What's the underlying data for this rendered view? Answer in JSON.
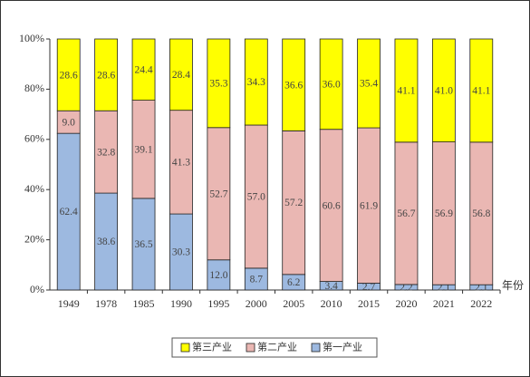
{
  "chart_data": {
    "type": "stacked_bar",
    "categories": [
      "1949",
      "1978",
      "1985",
      "1990",
      "1995",
      "2000",
      "2005",
      "2010",
      "2015",
      "2020",
      "2021",
      "2022"
    ],
    "x_label": "年份",
    "series": [
      {
        "name": "第一产业",
        "color": "#9db9e0",
        "values": [
          62.4,
          38.6,
          36.5,
          30.3,
          12.0,
          8.7,
          6.2,
          3.4,
          2.7,
          2.2,
          2.1,
          2.1
        ],
        "value_labels": [
          "62.4",
          "38.6",
          "36.5",
          "30.3",
          "12.0",
          "8.7",
          "6.2",
          "3.4",
          "2.7",
          "2.2",
          "2.1",
          "2.1"
        ]
      },
      {
        "name": "第二产业",
        "color": "#eab7b3",
        "values": [
          9.0,
          32.8,
          39.1,
          41.3,
          52.7,
          57.0,
          57.2,
          60.6,
          61.9,
          56.7,
          56.9,
          56.8
        ],
        "value_labels": [
          "9.0",
          "32.8",
          "39.1",
          "41.3",
          "52.7",
          "57.0",
          "57.2",
          "60.6",
          "61.9",
          "56.7",
          "56.9",
          "56.8"
        ]
      },
      {
        "name": "第三产业",
        "color": "#ffff00",
        "values": [
          28.6,
          28.6,
          24.4,
          28.4,
          35.3,
          34.3,
          36.6,
          36.0,
          35.4,
          41.1,
          41.0,
          41.1
        ],
        "value_labels": [
          "28.6",
          "28.6",
          "24.4",
          "28.4",
          "35.3",
          "34.3",
          "36.6",
          "36.0",
          "35.4",
          "41.1",
          "41.0",
          "41.1"
        ]
      }
    ],
    "ylim": [
      0,
      100
    ],
    "yticks": [
      {
        "value": 0,
        "label": "0%"
      },
      {
        "value": 20,
        "label": "20%"
      },
      {
        "value": 40,
        "label": "40%"
      },
      {
        "value": 60,
        "label": "60%"
      },
      {
        "value": 80,
        "label": "80%"
      },
      {
        "value": 100,
        "label": "100%"
      }
    ],
    "grid": false,
    "legend": "bottom"
  }
}
